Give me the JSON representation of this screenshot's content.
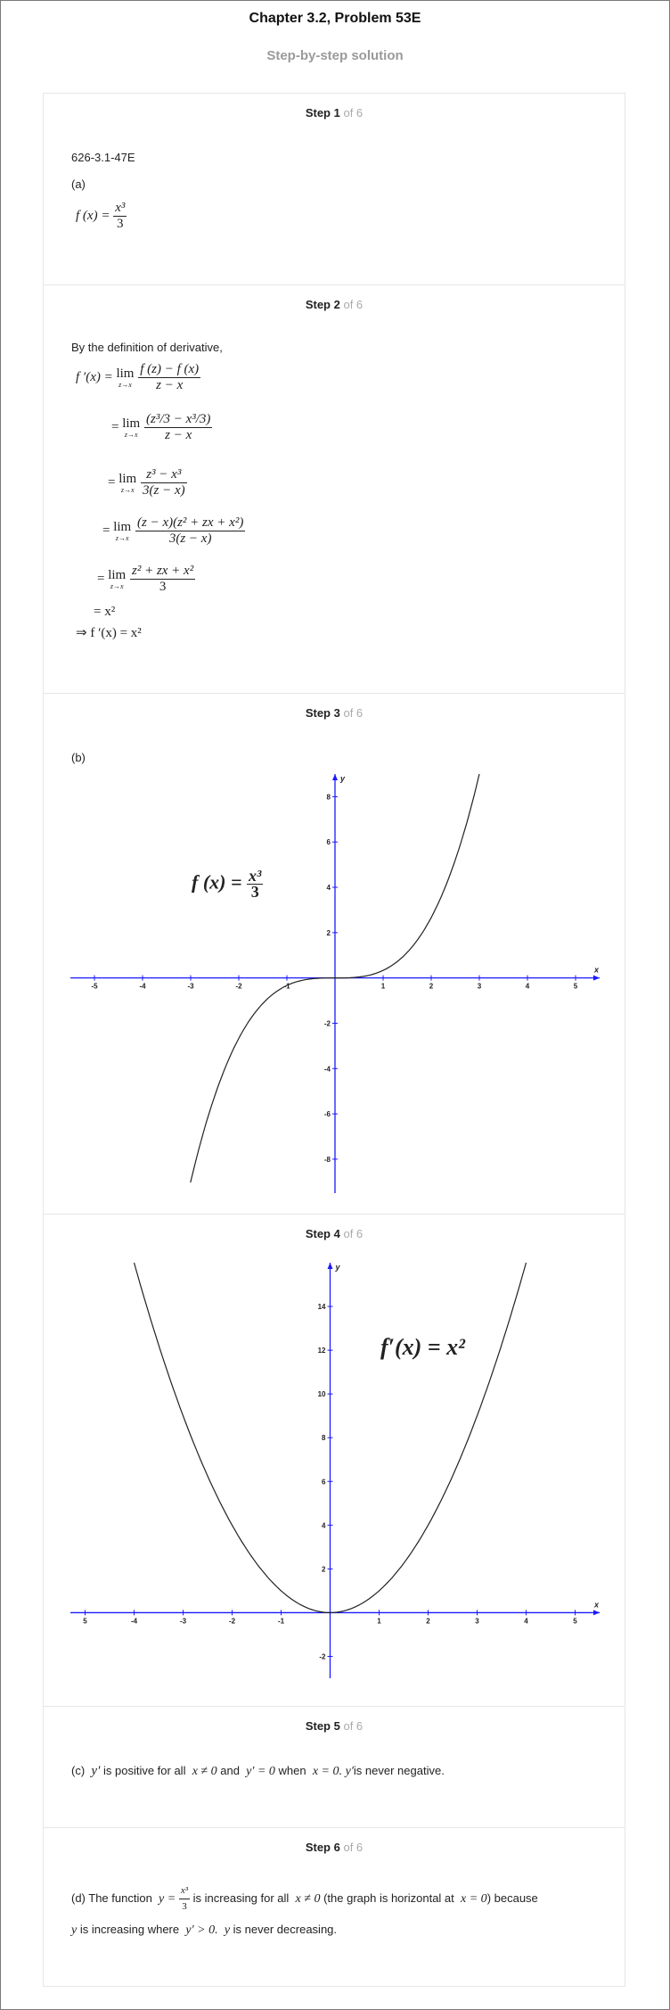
{
  "header": {
    "title": "Chapter 3.2, Problem 53E",
    "subtitle": "Step-by-step solution"
  },
  "steps": [
    {
      "label": "Step 1",
      "of": "of 6"
    },
    {
      "label": "Step 2",
      "of": "of 6"
    },
    {
      "label": "Step 3",
      "of": "of 6"
    },
    {
      "label": "Step 4",
      "of": "of 6"
    },
    {
      "label": "Step 5",
      "of": "of 6"
    },
    {
      "label": "Step 6",
      "of": "of 6"
    }
  ],
  "step1": {
    "code": "626-3.1-47E",
    "part": "(a)",
    "f_lhs": "f (x) =",
    "f_num": "x³",
    "f_den": "3"
  },
  "step2": {
    "intro": "By the definition of derivative,",
    "lim_label": "lim",
    "lim_sub": "z→x",
    "line1_lhs": "f ′(x) =",
    "line1_num": "f (z) − f (x)",
    "line1_den": "z − x",
    "line2_num": "(z³/3 − x³/3)",
    "line2_den": "z − x",
    "line3_num": "z³ − x³",
    "line3_den": "3(z − x)",
    "line4_num": "(z − x)(z² + zx + x²)",
    "line4_den": "3(z − x)",
    "line5_num": "z² + zx + x²",
    "line5_den": "3",
    "line6": "= x²",
    "line7": "⇒ f ′(x) = x²",
    "eq": "="
  },
  "step3": {
    "part": "(b)",
    "graph_label_lhs": "f (x) =",
    "graph_label_num": "x³",
    "graph_label_den": "3",
    "x_axis_label": "x",
    "y_axis_label": "y"
  },
  "step4": {
    "graph_label": "f′(x) = x²",
    "x_axis_label": "x",
    "y_axis_label": "y"
  },
  "step5": {
    "t1": "(c)",
    "t2": "y′",
    "t3": "is positive for all",
    "t4": "x ≠ 0",
    "t5": "and",
    "t6": "y′ = 0",
    "t7": "when",
    "t8": "x = 0.",
    "t9": "y′",
    "t10": "is never negative."
  },
  "step6": {
    "t1": "(d) The function",
    "t2": "y =",
    "t2_num": "x³",
    "t2_den": "3",
    "t3": "is increasing for all",
    "t4": "x ≠ 0",
    "t5": "(the graph is horizontal at",
    "t6": "x = 0",
    "t7": ") because",
    "t8": "y",
    "t9": "is increasing where",
    "t10": "y′ > 0.",
    "t11": "y",
    "t12": "is never decreasing."
  },
  "chart_data": [
    {
      "type": "line",
      "title": "",
      "series": [
        {
          "name": "f(x) = x³/3",
          "x": [
            -3.2,
            -3,
            -2.5,
            -2,
            -1.5,
            -1,
            -0.5,
            0,
            0.5,
            1,
            1.5,
            2,
            2.5,
            3,
            3.1
          ],
          "y": [
            -10.92,
            -9,
            -5.21,
            -2.67,
            -1.125,
            -0.333,
            -0.042,
            0,
            0.042,
            0.333,
            1.125,
            2.667,
            5.208,
            9,
            9.93
          ]
        }
      ],
      "xlim": [
        -5.5,
        5.5
      ],
      "ylim": [
        -9.5,
        9
      ],
      "x_ticks": [
        "-5",
        "-4",
        "-3",
        "-2",
        "-1",
        "1",
        "2",
        "3",
        "4",
        "5"
      ],
      "y_ticks": [
        "8",
        "6",
        "4",
        "2",
        "-2",
        "-4",
        "-6",
        "-8"
      ],
      "xlabel": "x",
      "ylabel": "y"
    },
    {
      "type": "line",
      "title": "",
      "series": [
        {
          "name": "f′(x) = x²",
          "x": [
            -4,
            -3.5,
            -3,
            -2.5,
            -2,
            -1.5,
            -1,
            -0.5,
            0,
            0.5,
            1,
            1.5,
            2,
            2.5,
            3,
            3.5,
            4
          ],
          "y": [
            16,
            12.25,
            9,
            6.25,
            4,
            2.25,
            1,
            0.25,
            0,
            0.25,
            1,
            2.25,
            4,
            6.25,
            9,
            12.25,
            16
          ]
        }
      ],
      "xlim": [
        -5.3,
        5.5
      ],
      "ylim": [
        -3,
        16
      ],
      "x_ticks": [
        "5",
        "-4",
        "-3",
        "-2",
        "-1",
        "1",
        "2",
        "3",
        "4",
        "5"
      ],
      "y_ticks": [
        "14",
        "12",
        "10",
        "8",
        "6",
        "4",
        "2",
        "-2"
      ],
      "xlabel": "x",
      "ylabel": "y"
    }
  ]
}
